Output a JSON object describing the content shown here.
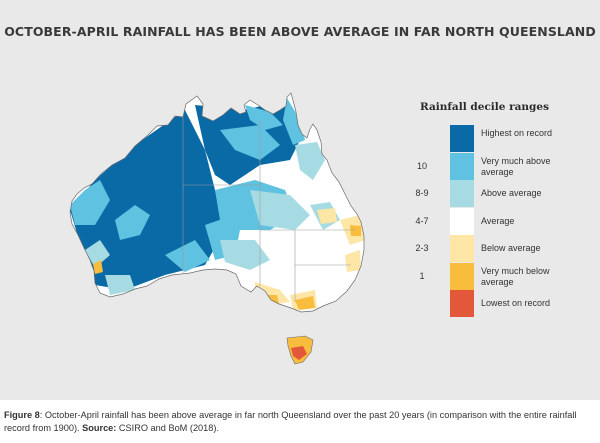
{
  "title": "OCTOBER-APRIL RAINFALL HAS BEEN ABOVE AVERAGE IN FAR NORTH QUEENSLAND",
  "legend": {
    "title": "Rainfall decile ranges",
    "items": [
      {
        "range": "",
        "label": "Highest on record",
        "color": "#0a6aa6"
      },
      {
        "range": "10",
        "label": "Very much above average",
        "color": "#5fc2e0"
      },
      {
        "range": "8-9",
        "label": "Above average",
        "color": "#a7dbe3"
      },
      {
        "range": "4-7",
        "label": "Average",
        "color": "#ffffff"
      },
      {
        "range": "2-3",
        "label": "Below average",
        "color": "#fde6a6"
      },
      {
        "range": "1",
        "label": "Very much below average",
        "color": "#f9bd3e"
      },
      {
        "range": "",
        "label": "Lowest on record",
        "color": "#e3573a"
      }
    ]
  },
  "caption": {
    "figure_label": "Figure 8",
    "text": ": October-April rainfall has been above average in far north Queensland over the past 20 years (in comparison with the entire rainfall record from 1900). ",
    "source_label": "Source:",
    "source_text": " CSIRO and BoM (2018)."
  },
  "colors": {
    "panel_background": "#e9e9ea",
    "state_borders": "#9b9b9b"
  }
}
